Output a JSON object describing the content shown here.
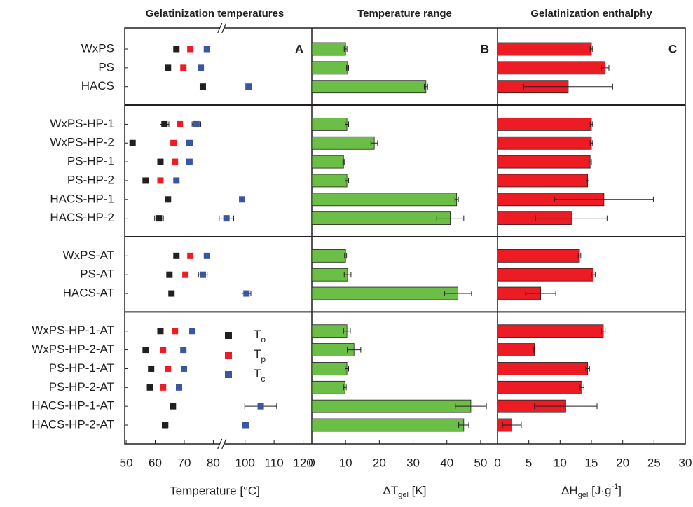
{
  "chart_data": [
    {
      "type": "dot",
      "title": "Gelatinization temperatures",
      "annotation": "A",
      "xlabel": "Temperature [°C]",
      "categories": [
        "WxPS",
        "PS",
        "HACS",
        "WxPS-HP-1",
        "WxPS-HP-2",
        "PS-HP-1",
        "PS-HP-2",
        "HACS-HP-1",
        "HACS-HP-2",
        "WxPS-AT",
        "PS-AT",
        "HACS-AT",
        "WxPS-HP-1-AT",
        "WxPS-HP-2-AT",
        "PS-HP-1-AT",
        "PS-HP-2-AT",
        "HACS-HP-1-AT",
        "HACS-HP-2-AT"
      ],
      "xlim": [
        49.5,
        123
      ],
      "xbreak": [
        82,
        93
      ],
      "xticks": [
        50,
        60,
        70,
        80,
        100,
        110,
        120
      ],
      "legend": "lower right",
      "series": [
        {
          "name": "T",
          "subscript": "o",
          "color": "#231f20",
          "values": [
            67.3,
            64.4,
            76.4,
            63.2,
            52.2,
            61.8,
            56.7,
            64.4,
            61.3,
            67.3,
            64.9,
            65.6,
            61.8,
            56.7,
            58.6,
            58.2,
            66.1,
            63.4
          ],
          "errors": [
            0.5,
            0.5,
            0.5,
            1.5,
            0.5,
            0.5,
            0.5,
            0.5,
            1.5,
            0.5,
            0.5,
            0.7,
            0.8,
            0.5,
            0.5,
            0.5,
            0.5,
            1.0
          ]
        },
        {
          "name": "T",
          "subscript": "p",
          "color": "#ed1c24",
          "values": [
            72.1,
            69.7,
            null,
            68.5,
            66.3,
            66.8,
            61.8,
            null,
            null,
            72.1,
            70.4,
            null,
            66.8,
            62.7,
            64.4,
            62.7,
            null,
            null
          ],
          "errors": [
            0.5,
            0.5,
            null,
            0.5,
            0.5,
            0.5,
            0.5,
            null,
            null,
            0.5,
            0.5,
            null,
            0.5,
            0.5,
            0.5,
            0.5,
            null,
            null
          ]
        },
        {
          "name": "T",
          "subscript": "c",
          "color": "#3a55a4",
          "values": [
            77.8,
            75.7,
            101.2,
            74.2,
            71.8,
            71.8,
            67.3,
            99.0,
            93.6,
            77.8,
            76.4,
            100.5,
            72.8,
            69.7,
            69.9,
            68.2,
            105.4,
            100.2
          ],
          "errors": [
            0.5,
            0.5,
            0.5,
            1.5,
            1.0,
            0.5,
            0.3,
            0.5,
            2.5,
            0.5,
            1.5,
            1.5,
            0.5,
            0.5,
            0.5,
            0.5,
            5.5,
            0.5
          ]
        }
      ]
    },
    {
      "type": "bar",
      "title": "Temperature range",
      "annotation": "B",
      "color": "#6cbf46",
      "xlabel": [
        {
          "text": "ΔT"
        },
        {
          "text": "gel",
          "sub": true
        },
        {
          "text": " [K]"
        }
      ],
      "xlim": [
        0,
        55
      ],
      "xticks": [
        0,
        10,
        20,
        30,
        40,
        50
      ],
      "values": [
        10.0,
        10.6,
        33.8,
        10.4,
        18.5,
        9.4,
        10.4,
        42.9,
        41.0,
        10.0,
        10.6,
        43.3,
        10.4,
        12.5,
        10.4,
        9.8,
        47.1,
        45.0
      ],
      "errors": [
        0.4,
        0.3,
        0.5,
        0.5,
        1.0,
        0.2,
        0.5,
        0.5,
        4.0,
        0.3,
        1.0,
        4.0,
        1.0,
        2.0,
        0.5,
        0.4,
        4.6,
        1.5
      ]
    },
    {
      "type": "bar",
      "title": "Gelatinization enthalphy",
      "annotation": "C",
      "color": "#ed1c24",
      "xlabel": [
        {
          "text": "ΔH"
        },
        {
          "text": "gel",
          "sub": true
        },
        {
          "text": " [J·g"
        },
        {
          "text": "-1",
          "sup": true
        },
        {
          "text": "]"
        }
      ],
      "xlim": [
        0,
        30
      ],
      "xticks": [
        0,
        5,
        10,
        15,
        20,
        25,
        30
      ],
      "values": [
        15.0,
        17.2,
        11.3,
        15.0,
        15.0,
        14.8,
        14.4,
        17.0,
        11.8,
        13.1,
        15.3,
        6.9,
        16.9,
        5.9,
        14.4,
        13.5,
        10.9,
        2.3
      ],
      "errors": [
        0.2,
        0.6,
        7.1,
        0.2,
        0.2,
        0.2,
        0.2,
        7.9,
        5.7,
        0.2,
        0.3,
        2.4,
        0.3,
        0.1,
        0.3,
        0.3,
        5.0,
        1.5
      ]
    }
  ]
}
